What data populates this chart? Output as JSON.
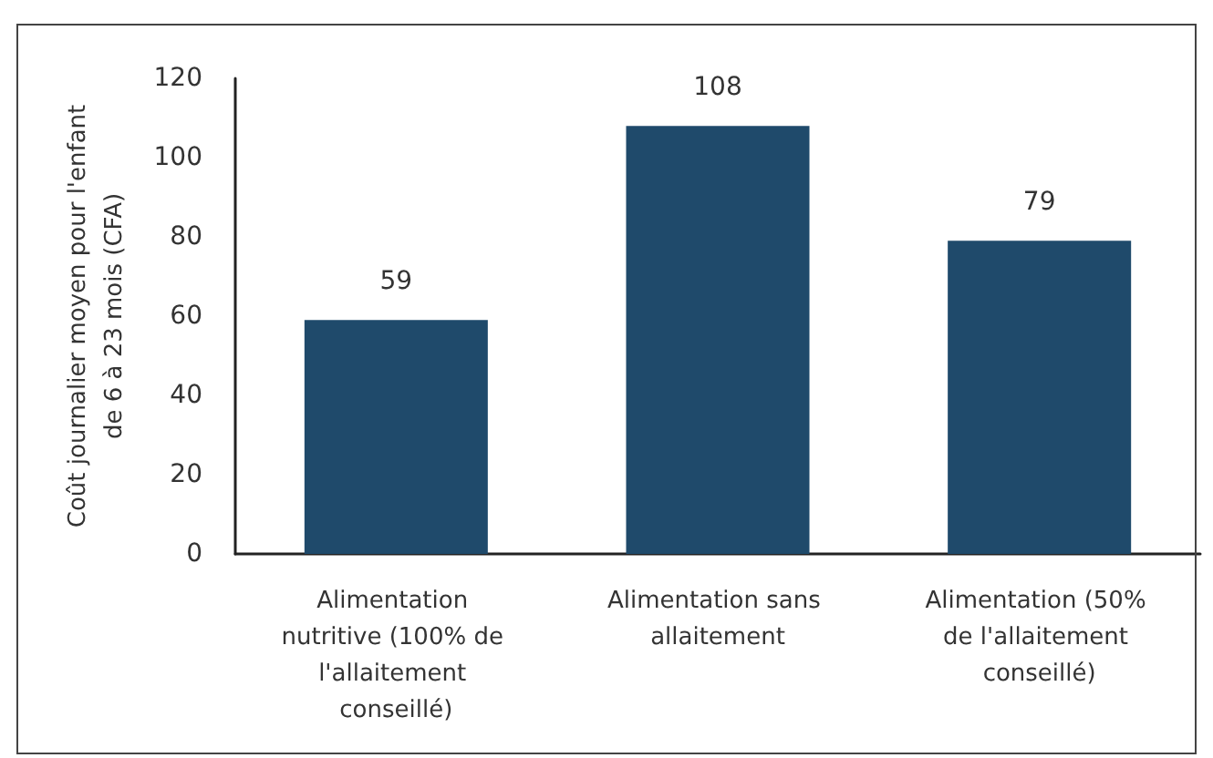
{
  "chart_data": {
    "type": "bar",
    "ylabel": "Coût journalier moyen pour l'enfant de 6 à 23 mois (CFA)",
    "categories": [
      "Alimentation nutritive (100% de l'allaitement conseillé)",
      "Alimentation sans allaitement",
      "Alimentation (50% de l'allaitement conseillé)"
    ],
    "values": [
      59,
      108,
      79
    ],
    "color": "#1f4a6b",
    "ylim": [
      0,
      120
    ],
    "yticks": [
      0,
      20,
      40,
      60,
      80,
      100,
      120
    ],
    "grid": false,
    "data_labels": true
  }
}
